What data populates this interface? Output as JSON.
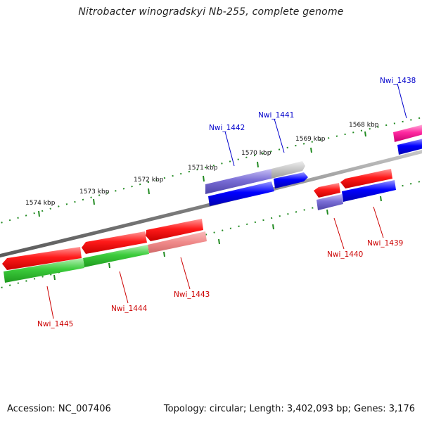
{
  "title": "Nitrobacter winogradskyi Nb-255, complete genome",
  "footer": {
    "accession": "Accession: NC_007406",
    "summary": "Topology: circular; Length: 3,402,093 bp; Genes: 3,176"
  },
  "scale": {
    "ticks": [
      "1568 kbp",
      "1569 kbp",
      "1570 kbp",
      "1571 kbp",
      "1572 kbp",
      "1573 kbp",
      "1574 kbp"
    ]
  },
  "genes": [
    {
      "id": "Nwi_1438",
      "color": "#0000cc"
    },
    {
      "id": "Nwi_1439",
      "color": "#cc0000"
    },
    {
      "id": "Nwi_1440",
      "color": "#cc0000"
    },
    {
      "id": "Nwi_1441",
      "color": "#0000cc"
    },
    {
      "id": "Nwi_1442",
      "color": "#0000cc"
    },
    {
      "id": "Nwi_1443",
      "color": "#cc0000"
    },
    {
      "id": "Nwi_1444",
      "color": "#cc0000"
    },
    {
      "id": "Nwi_1445",
      "color": "#cc0000"
    }
  ],
  "colors": {
    "backbone": "#808080",
    "tick": "#228b22",
    "red": "#ff0000",
    "light_red": "#f08080",
    "green": "#33cc33",
    "purple": "#7a6ed6",
    "gray": "#bdbdbd",
    "blue": "#0000ff",
    "magenta": "#ff2aa0"
  }
}
